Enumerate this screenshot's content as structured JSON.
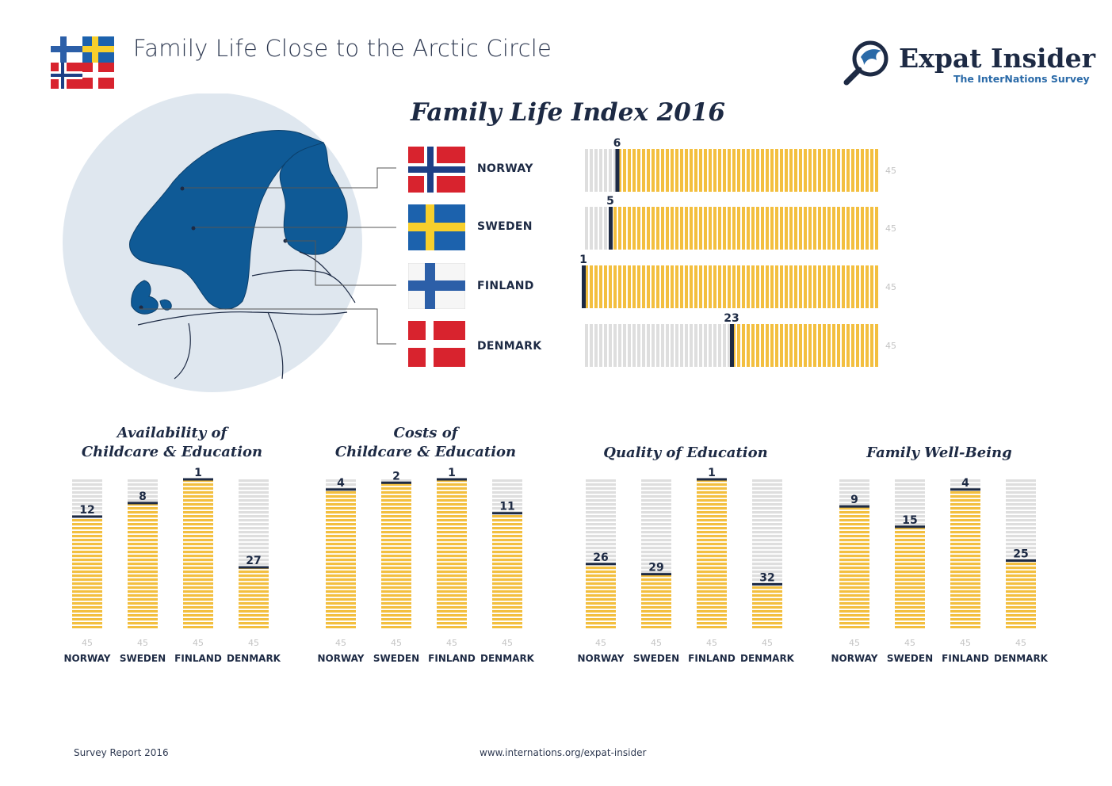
{
  "header": {
    "title": "Family Life Close to the Arctic Circle",
    "logo_main": "Expat Insider",
    "logo_sub": "The InterNations Survey"
  },
  "footer": {
    "left": "Survey Report 2016",
    "center": "www.internations.org/expat-insider"
  },
  "colors": {
    "bar_fill": "#f3bf3f",
    "bar_empty": "#dedede",
    "rank_marker": "#1d2a44",
    "map_land": "#0f5a96",
    "map_circle": "#dfe7ef",
    "norway_red": "#d8232e",
    "sweden_blue": "#1c62ad",
    "sweden_yellow": "#f7cf2c",
    "finland_blue": "#2c5fa8",
    "denmark_red": "#d8232e"
  },
  "chart_data": [
    {
      "type": "bar",
      "title": "Family Life Index 2016",
      "orientation": "horizontal",
      "metric": "rank",
      "max_rank": 45,
      "end_label": "45",
      "categories": [
        "NORWAY",
        "SWEDEN",
        "FINLAND",
        "DENMARK"
      ],
      "values": [
        6,
        5,
        1,
        23
      ],
      "value_labels": [
        "6",
        "5",
        "1",
        "23"
      ]
    },
    {
      "type": "bar",
      "title_lines": [
        "Availability of",
        "Childcare & Education"
      ],
      "orientation": "vertical",
      "metric": "rank",
      "max_rank": 45,
      "categories": [
        "NORWAY",
        "SWEDEN",
        "FINLAND",
        "DENMARK"
      ],
      "values": [
        12,
        8,
        1,
        27
      ],
      "value_labels": [
        "12",
        "8",
        "1",
        "27"
      ],
      "base_label": "45"
    },
    {
      "type": "bar",
      "title_lines": [
        "Costs of",
        "Childcare & Education"
      ],
      "orientation": "vertical",
      "metric": "rank",
      "max_rank": 45,
      "categories": [
        "NORWAY",
        "SWEDEN",
        "FINLAND",
        "DENMARK"
      ],
      "values": [
        4,
        2,
        1,
        11
      ],
      "value_labels": [
        "4",
        "2",
        "1",
        "11"
      ],
      "base_label": "45"
    },
    {
      "type": "bar",
      "title_lines": [
        "Quality of Education"
      ],
      "orientation": "vertical",
      "metric": "rank",
      "max_rank": 45,
      "categories": [
        "NORWAY",
        "SWEDEN",
        "FINLAND",
        "DENMARK"
      ],
      "values": [
        26,
        29,
        1,
        32
      ],
      "value_labels": [
        "26",
        "29",
        "1",
        "32"
      ],
      "base_label": "45"
    },
    {
      "type": "bar",
      "title_lines": [
        "Family Well-Being"
      ],
      "orientation": "vertical",
      "metric": "rank",
      "max_rank": 45,
      "categories": [
        "NORWAY",
        "SWEDEN",
        "FINLAND",
        "DENMARK"
      ],
      "values": [
        9,
        15,
        4,
        25
      ],
      "value_labels": [
        "9",
        "15",
        "4",
        "25"
      ],
      "base_label": "45"
    }
  ]
}
